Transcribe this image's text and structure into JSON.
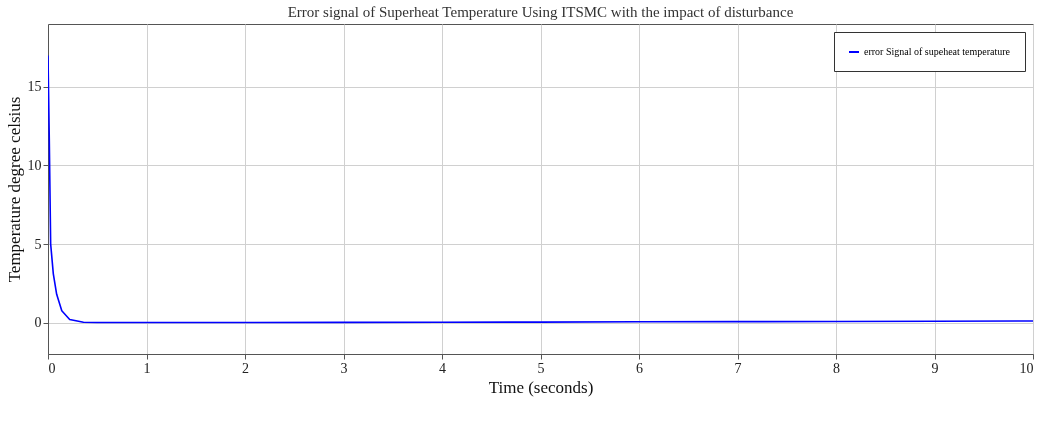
{
  "chart_data": {
    "type": "line",
    "title": "Error signal of Superheat Temperature Using ITSMC with the impact of disturbance",
    "xlabel": "Time (seconds)",
    "ylabel": "Temperature degree celsius",
    "x": [
      0,
      0.013,
      0.027,
      0.054,
      0.088,
      0.14,
      0.22,
      0.36,
      0.5,
      1,
      2,
      3,
      4,
      5,
      6,
      7,
      8,
      9,
      10
    ],
    "series": [
      {
        "name": "error Signal of supeheat temperature",
        "color": "#0000ff",
        "values": [
          17,
          11.7,
          5.0,
          3.1,
          1.8,
          0.75,
          0.2,
          0.02,
          0,
          0,
          0,
          0.01,
          0.02,
          0.03,
          0.05,
          0.06,
          0.07,
          0.08,
          0.1
        ]
      }
    ],
    "xlim": [
      0,
      10
    ],
    "xticks": [
      0,
      1,
      2,
      3,
      4,
      5,
      6,
      7,
      8,
      9,
      10
    ],
    "ylim": [
      -2,
      19
    ],
    "yticks": [
      0,
      5,
      10,
      15
    ],
    "grid": true,
    "legend": "top right",
    "line_style": "solid",
    "marker": "none"
  }
}
